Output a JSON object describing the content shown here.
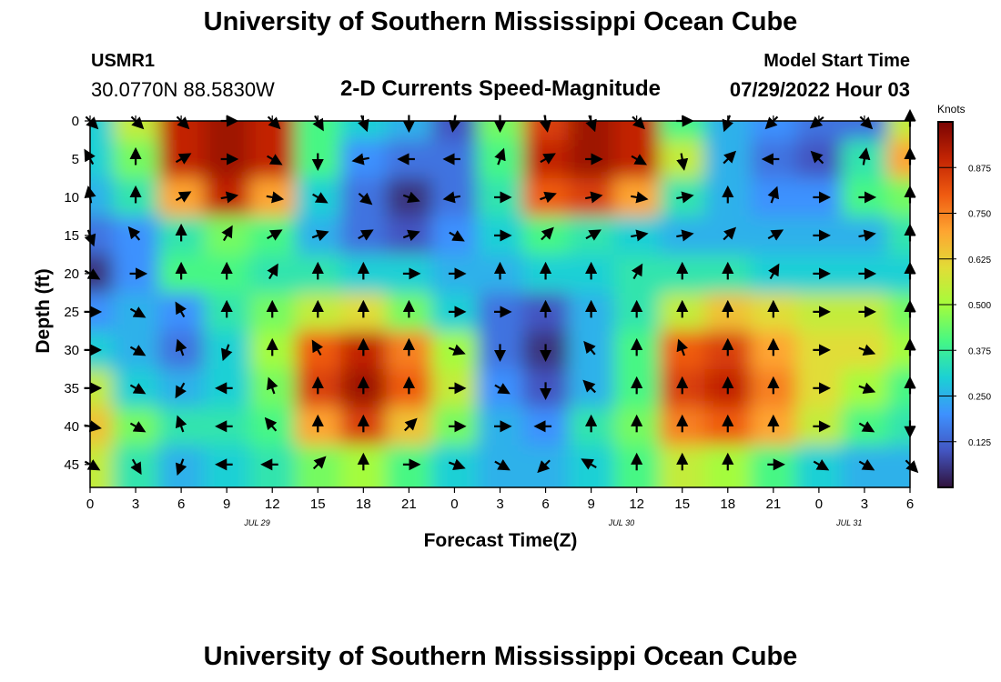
{
  "header": {
    "title": "University of Southern Mississippi Ocean Cube",
    "station": "USMR1",
    "coords": "30.0770N  88.5830W",
    "subtitle": "2-D Currents Speed-Magnitude",
    "model_start_label": "Model Start Time",
    "model_start_value": "07/29/2022 Hour 03"
  },
  "footer": {
    "title_repeat": "University of Southern Mississippi Ocean Cube"
  },
  "colors": {
    "arrow": "#000000",
    "low": "#30123b",
    "high": "#7a0403"
  },
  "chart_data": {
    "type": "heatmap",
    "title": "2-D Currents Speed-Magnitude",
    "xlabel": "Forecast Time(Z)",
    "ylabel": "Depth (ft)",
    "colorbar_label": "Knots",
    "colormap": "turbo",
    "value_range": [
      0,
      1.0
    ],
    "colorbar_ticks": [
      "0.875",
      "0.750",
      "0.625",
      "0.500",
      "0.375",
      "0.250",
      "0.125"
    ],
    "colorbar_tick_values": [
      0.875,
      0.75,
      0.625,
      0.5,
      0.375,
      0.25,
      0.125
    ],
    "x_tick_labels": [
      "0",
      "3",
      "6",
      "9",
      "12",
      "15",
      "18",
      "21",
      "0",
      "3",
      "6",
      "9",
      "12",
      "15",
      "18",
      "21",
      "0",
      "3",
      "6"
    ],
    "x_range_hours": [
      0,
      54
    ],
    "date_labels": [
      {
        "label": "JUL 29",
        "hour": 11
      },
      {
        "label": "JUL 30",
        "hour": 35
      },
      {
        "label": "JUL 31",
        "hour": 50
      }
    ],
    "y_tick_labels": [
      "0",
      "5",
      "10",
      "15",
      "20",
      "25",
      "30",
      "35",
      "40",
      "45"
    ],
    "y_range_ft": [
      0,
      48
    ],
    "arrow_grid": {
      "hour_step": 3,
      "depth_step": 5
    },
    "speed_knots": [
      [
        0.3,
        0.55,
        0.9,
        0.95,
        0.9,
        0.4,
        0.3,
        0.25,
        0.1,
        0.45,
        0.85,
        0.95,
        0.9,
        0.4,
        0.25,
        0.2,
        0.15,
        0.15,
        0.55
      ],
      [
        0.3,
        0.45,
        0.9,
        0.95,
        0.9,
        0.4,
        0.2,
        0.15,
        0.15,
        0.4,
        0.9,
        0.95,
        0.9,
        0.55,
        0.25,
        0.15,
        0.1,
        0.35,
        0.7
      ],
      [
        0.25,
        0.35,
        0.7,
        0.9,
        0.7,
        0.3,
        0.15,
        0.05,
        0.15,
        0.35,
        0.8,
        0.85,
        0.7,
        0.35,
        0.25,
        0.2,
        0.2,
        0.4,
        0.45
      ],
      [
        0.15,
        0.2,
        0.35,
        0.45,
        0.4,
        0.25,
        0.15,
        0.1,
        0.2,
        0.3,
        0.4,
        0.35,
        0.3,
        0.25,
        0.25,
        0.25,
        0.25,
        0.25,
        0.35
      ],
      [
        0.05,
        0.2,
        0.4,
        0.4,
        0.35,
        0.35,
        0.3,
        0.3,
        0.25,
        0.25,
        0.3,
        0.3,
        0.35,
        0.35,
        0.35,
        0.3,
        0.3,
        0.3,
        0.3
      ],
      [
        0.2,
        0.25,
        0.2,
        0.35,
        0.45,
        0.55,
        0.6,
        0.45,
        0.3,
        0.15,
        0.1,
        0.25,
        0.35,
        0.55,
        0.65,
        0.6,
        0.55,
        0.55,
        0.45
      ],
      [
        0.3,
        0.25,
        0.15,
        0.3,
        0.5,
        0.8,
        0.9,
        0.75,
        0.5,
        0.15,
        0.05,
        0.25,
        0.4,
        0.8,
        0.85,
        0.7,
        0.6,
        0.6,
        0.5
      ],
      [
        0.55,
        0.3,
        0.25,
        0.3,
        0.45,
        0.85,
        0.95,
        0.8,
        0.55,
        0.2,
        0.1,
        0.25,
        0.4,
        0.85,
        0.9,
        0.75,
        0.6,
        0.5,
        0.4
      ],
      [
        0.65,
        0.45,
        0.35,
        0.35,
        0.4,
        0.7,
        0.85,
        0.65,
        0.45,
        0.25,
        0.2,
        0.35,
        0.45,
        0.75,
        0.8,
        0.7,
        0.55,
        0.4,
        0.35
      ],
      [
        0.55,
        0.35,
        0.25,
        0.3,
        0.35,
        0.45,
        0.5,
        0.4,
        0.3,
        0.25,
        0.25,
        0.3,
        0.4,
        0.55,
        0.5,
        0.4,
        0.3,
        0.25,
        0.25
      ]
    ],
    "arrow_direction_deg": [
      [
        135,
        135,
        135,
        90,
        135,
        150,
        160,
        180,
        190,
        180,
        170,
        160,
        135,
        90,
        200,
        225,
        230,
        135,
        0
      ],
      [
        330,
        0,
        60,
        90,
        120,
        180,
        260,
        270,
        270,
        20,
        60,
        90,
        120,
        170,
        45,
        270,
        315,
        10,
        0
      ],
      [
        350,
        0,
        60,
        80,
        100,
        120,
        130,
        110,
        260,
        90,
        70,
        80,
        100,
        80,
        0,
        20,
        90,
        90,
        0
      ],
      [
        160,
        320,
        0,
        30,
        60,
        70,
        60,
        70,
        120,
        90,
        45,
        60,
        80,
        80,
        45,
        60,
        90,
        80,
        0
      ],
      [
        120,
        90,
        0,
        0,
        30,
        0,
        0,
        90,
        90,
        0,
        0,
        0,
        30,
        0,
        0,
        30,
        90,
        90,
        0
      ],
      [
        90,
        120,
        330,
        0,
        0,
        0,
        0,
        0,
        90,
        90,
        0,
        0,
        0,
        0,
        0,
        0,
        90,
        90,
        0
      ],
      [
        90,
        120,
        340,
        200,
        0,
        330,
        0,
        0,
        110,
        180,
        180,
        320,
        0,
        340,
        0,
        0,
        90,
        110,
        0
      ],
      [
        90,
        120,
        210,
        270,
        340,
        0,
        0,
        0,
        90,
        120,
        180,
        315,
        0,
        0,
        0,
        0,
        90,
        110,
        0
      ],
      [
        100,
        120,
        340,
        270,
        320,
        0,
        0,
        45,
        90,
        90,
        270,
        0,
        0,
        0,
        0,
        0,
        90,
        120,
        180
      ],
      [
        120,
        150,
        200,
        270,
        270,
        45,
        0,
        90,
        110,
        120,
        225,
        300,
        0,
        0,
        0,
        90,
        120,
        120,
        135
      ]
    ]
  }
}
